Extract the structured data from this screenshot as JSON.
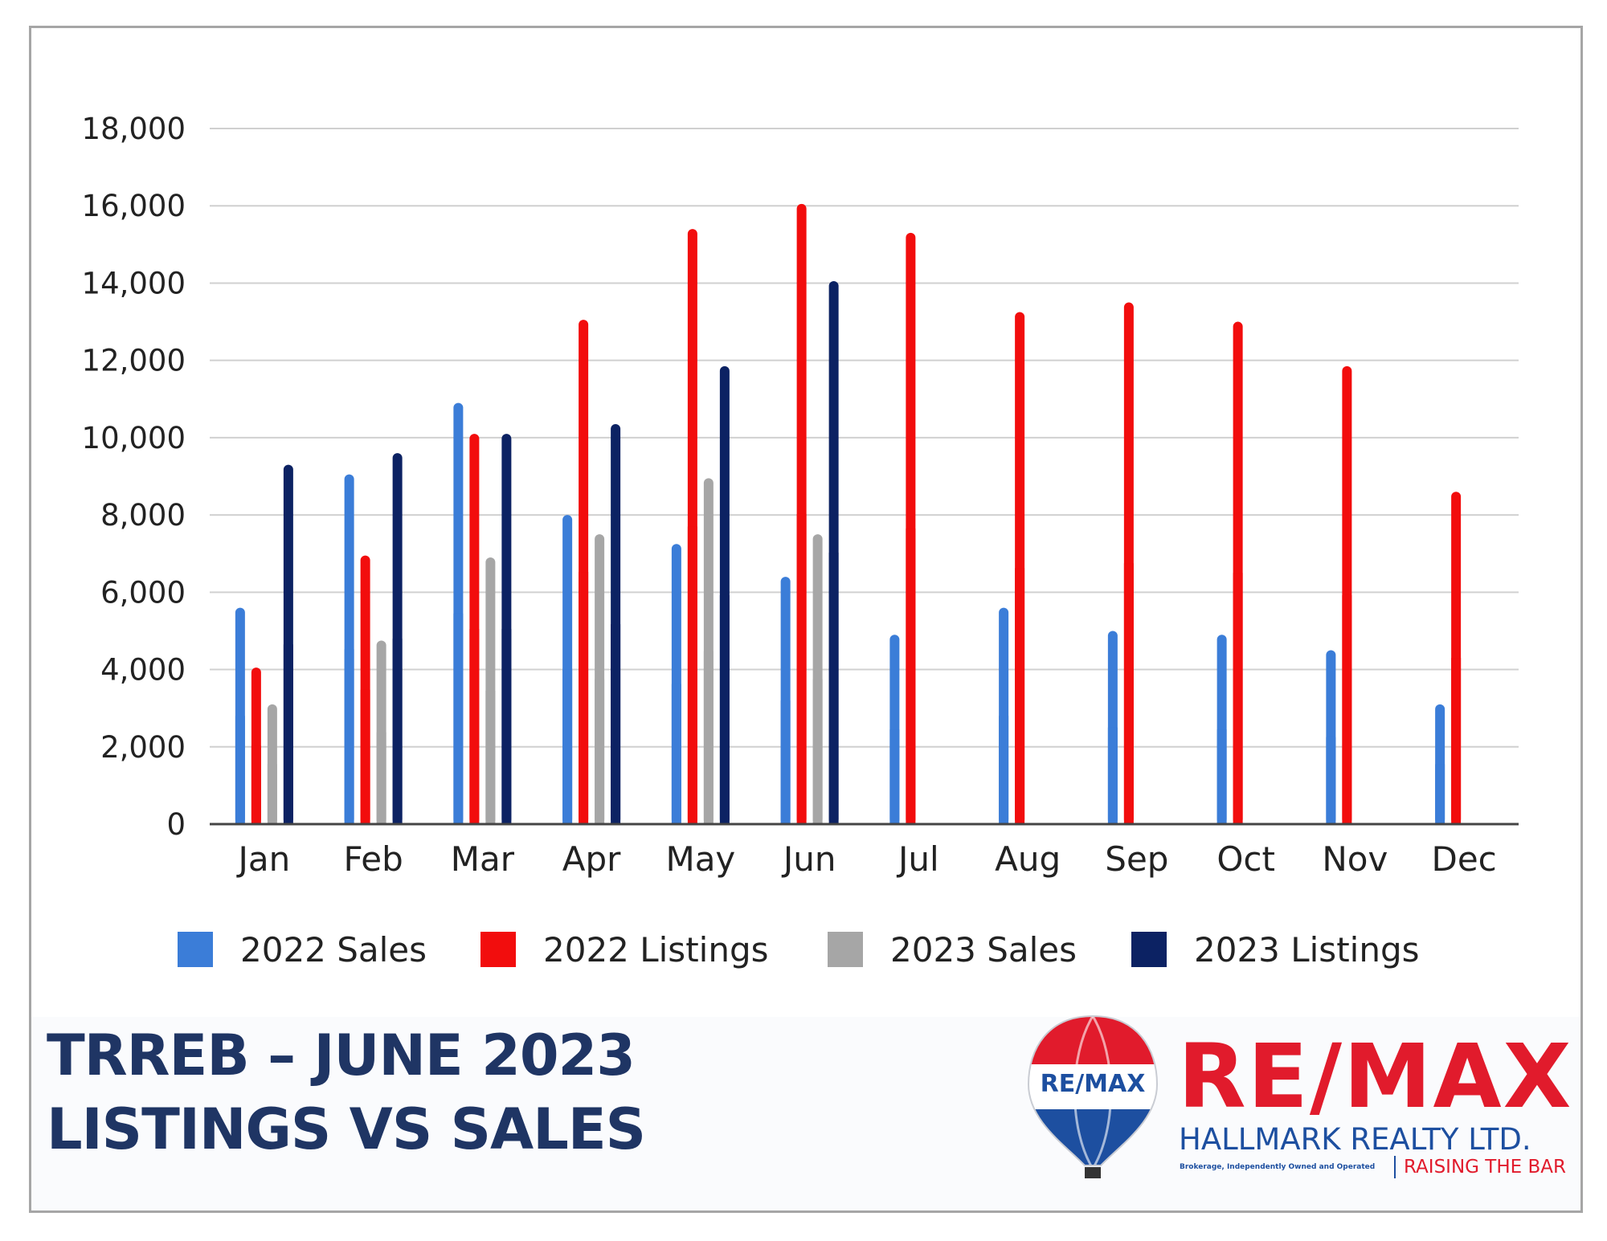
{
  "chart_data": {
    "type": "bar",
    "categories": [
      "Jan",
      "Feb",
      "Mar",
      "Apr",
      "May",
      "Jun",
      "Jul",
      "Aug",
      "Sep",
      "Oct",
      "Nov",
      "Dec"
    ],
    "series": [
      {
        "name": "2022 Sales",
        "color": "#3b7dd8",
        "values": [
          5600,
          9050,
          10900,
          8000,
          7250,
          6400,
          4900,
          5600,
          5000,
          4900,
          4500,
          3100
        ]
      },
      {
        "name": "2022 Listings",
        "color": "#f20d0d",
        "values": [
          4050,
          6950,
          10100,
          13050,
          15400,
          16050,
          15300,
          13250,
          13500,
          13000,
          11850,
          8600
        ]
      },
      {
        "name": "2023 Sales",
        "color": "#a6a6a6",
        "values": [
          3100,
          4750,
          6900,
          7500,
          8950,
          7500,
          null,
          null,
          null,
          null,
          null,
          null
        ]
      },
      {
        "name": "2023 Listings",
        "color": "#0c2263",
        "values": [
          9300,
          9600,
          10100,
          10350,
          11850,
          14050,
          null,
          null,
          null,
          null,
          null,
          null
        ]
      }
    ],
    "yticks": [
      "0",
      "2,000",
      "4,000",
      "6,000",
      "8,000",
      "10,000",
      "12,000",
      "14,000",
      "16,000",
      "18,000"
    ],
    "ylim": [
      0,
      18000
    ],
    "grid": true,
    "legend_position": "bottom"
  },
  "headline": {
    "line1": "TRREB – JUNE 2023",
    "line2": "LISTINGS VS SALES"
  },
  "logo": {
    "balloon_text": "RE/MAX",
    "wordmark": "RE/MAX",
    "subtitle": "HALLMARK REALTY LTD.",
    "small_print": "Brokerage, Independently Owned and Operated",
    "tagline": "RAISING THE BAR"
  }
}
